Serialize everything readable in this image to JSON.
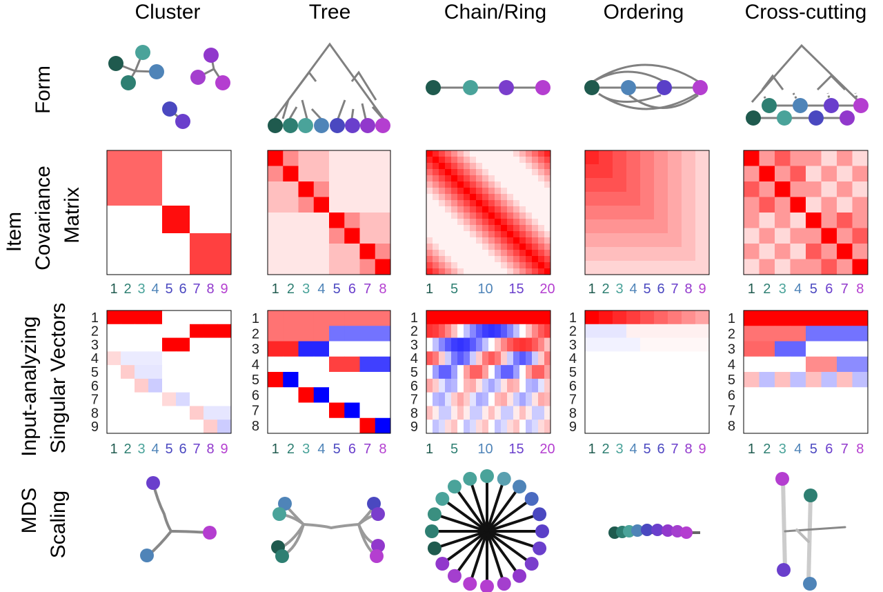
{
  "columns": [
    {
      "key": "cluster",
      "title": "Cluster"
    },
    {
      "key": "tree",
      "title": "Tree"
    },
    {
      "key": "chain",
      "title": "Chain/Ring"
    },
    {
      "key": "ordering",
      "title": "Ordering"
    },
    {
      "key": "cross",
      "title": "Cross-cutting"
    }
  ],
  "rows": {
    "form": {
      "lines": [
        "Form"
      ]
    },
    "covariance": {
      "lines": [
        "Item",
        "Covariance",
        "Matrix"
      ]
    },
    "singular": {
      "lines": [
        "Input-analyzing",
        "Singular Vectors"
      ]
    },
    "mds": {
      "lines": [
        "MDS",
        "Scaling"
      ]
    }
  },
  "x_ticks": {
    "cluster": [
      "1",
      "2",
      "3",
      "4",
      "5",
      "6",
      "7",
      "8",
      "9"
    ],
    "tree": [
      "1",
      "2",
      "3",
      "4",
      "5",
      "6",
      "7",
      "8"
    ],
    "chain": [
      "1",
      "5",
      "10",
      "15",
      "20"
    ],
    "ordering": [
      "1",
      "2",
      "3",
      "4",
      "5",
      "6",
      "7",
      "8",
      "9"
    ],
    "cross": [
      "1",
      "2",
      "3",
      "4",
      "5",
      "6",
      "7",
      "8"
    ]
  },
  "y_ticks": {
    "cluster": [
      "1",
      "2",
      "3",
      "4",
      "5",
      "6",
      "7",
      "8",
      "9"
    ],
    "tree": [
      "1",
      "2",
      "3",
      "4",
      "5",
      "6",
      "7",
      "8"
    ],
    "chain": [
      "1",
      "2",
      "3",
      "4",
      "5",
      "6",
      "7",
      "8",
      "9"
    ],
    "ordering": [
      "1",
      "2",
      "3",
      "4",
      "5",
      "6",
      "7",
      "8",
      "9"
    ],
    "cross": [
      "1",
      "2",
      "3",
      "4",
      "5",
      "6",
      "7",
      "8"
    ]
  },
  "colors": {
    "item_gradient": [
      "#1f5a4e",
      "#2e7f72",
      "#4aa39a",
      "#4f84b8",
      "#4a48c0",
      "#6a3fcc",
      "#9138cc",
      "#b43ed0"
    ],
    "positive": "#ff0000",
    "negative": "#0000ff",
    "edge": "#808080",
    "mds_edge": "#111111"
  }
}
